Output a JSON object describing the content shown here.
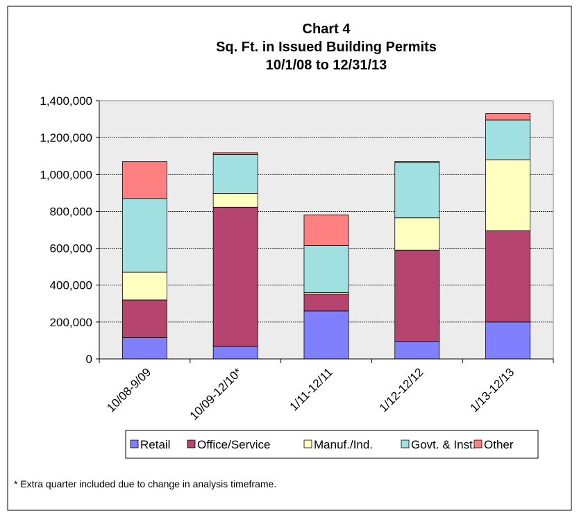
{
  "chart_data": {
    "type": "stacked_bar",
    "title": "Chart 4",
    "subtitle": [
      "Sq. Ft. in Issued Building Permits",
      "10/1/08 to 12/31/13"
    ],
    "categories": [
      "10/08-9/09",
      "10/09-12/10*",
      "1/11-12/11",
      "1/12-12/12",
      "1/13-12/13"
    ],
    "series": [
      {
        "name": "Retail",
        "color": "#8080ff",
        "values": [
          115000,
          68000,
          260000,
          95000,
          200000
        ]
      },
      {
        "name": "Office/Service",
        "color": "#b5446e",
        "values": [
          205000,
          755000,
          92000,
          495000,
          495000
        ]
      },
      {
        "name": "Manuf./Ind.",
        "color": "#ffffc0",
        "values": [
          150000,
          75000,
          8000,
          175000,
          385000
        ]
      },
      {
        "name": "Govt. & Inst.",
        "color": "#a0e0e0",
        "values": [
          400000,
          210000,
          255000,
          300000,
          215000
        ]
      },
      {
        "name": "Other",
        "color": "#ff8080",
        "values": [
          200000,
          10000,
          165000,
          5000,
          35000
        ]
      }
    ],
    "ylim": [
      0,
      1400000
    ],
    "yticks": [
      0,
      {
        "value": 200000,
        "label": "200,000"
      },
      {
        "value": 400000,
        "label": "400,000"
      },
      {
        "value": 600000,
        "label": "600,000"
      },
      {
        "value": 800000,
        "label": "800,000"
      },
      {
        "value": 1000000,
        "label": "1,000,000"
      },
      {
        "value": 1200000,
        "label": "1,200,000"
      },
      {
        "value": 1400000,
        "label": "1,400,000"
      }
    ],
    "grid": true,
    "legend": "bottom",
    "footnote": "* Extra quarter included due to change in analysis timeframe."
  }
}
